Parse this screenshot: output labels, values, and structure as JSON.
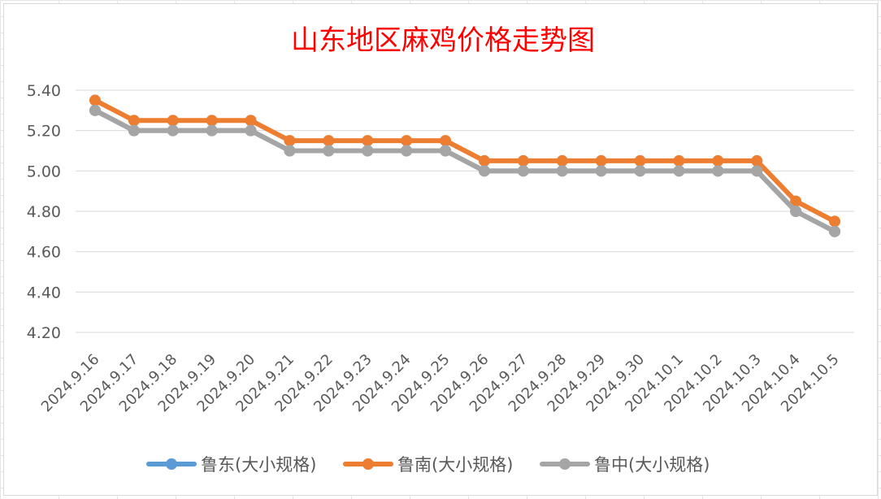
{
  "chart_data": {
    "type": "line",
    "title": "山东地区麻鸡价格走势图",
    "categories": [
      "2024.9.16",
      "2024.9.17",
      "2024.9.18",
      "2024.9.19",
      "2024.9.20",
      "2024.9.21",
      "2024.9.22",
      "2024.9.23",
      "2024.9.24",
      "2024.9.25",
      "2024.9.26",
      "2024.9.27",
      "2024.9.28",
      "2024.9.29",
      "2024.9.30",
      "2024.10.1",
      "2024.10.2",
      "2024.10.3",
      "2024.10.4",
      "2024.10.5"
    ],
    "yticks": [
      "4.20",
      "4.40",
      "4.60",
      "4.80",
      "5.00",
      "5.20",
      "5.40"
    ],
    "ylim": [
      4.2,
      5.4
    ],
    "grid": true,
    "legend_position": "bottom",
    "series": [
      {
        "name": "鲁东(大小规格)",
        "color": "#5b9bd5",
        "values": [
          5.3,
          5.2,
          5.2,
          5.2,
          5.2,
          5.1,
          5.1,
          5.1,
          5.1,
          5.1,
          5.0,
          5.0,
          5.0,
          5.0,
          5.0,
          5.0,
          5.0,
          5.0,
          4.8,
          4.7
        ]
      },
      {
        "name": "鲁南(大小规格)",
        "color": "#ed7d31",
        "values": [
          5.35,
          5.25,
          5.25,
          5.25,
          5.25,
          5.15,
          5.15,
          5.15,
          5.15,
          5.15,
          5.05,
          5.05,
          5.05,
          5.05,
          5.05,
          5.05,
          5.05,
          5.05,
          4.85,
          4.75
        ]
      },
      {
        "name": "鲁中(大小规格)",
        "color": "#a5a5a5",
        "values": [
          5.3,
          5.2,
          5.2,
          5.2,
          5.2,
          5.1,
          5.1,
          5.1,
          5.1,
          5.1,
          5.0,
          5.0,
          5.0,
          5.0,
          5.0,
          5.0,
          5.0,
          5.0,
          4.8,
          4.7
        ]
      }
    ]
  }
}
